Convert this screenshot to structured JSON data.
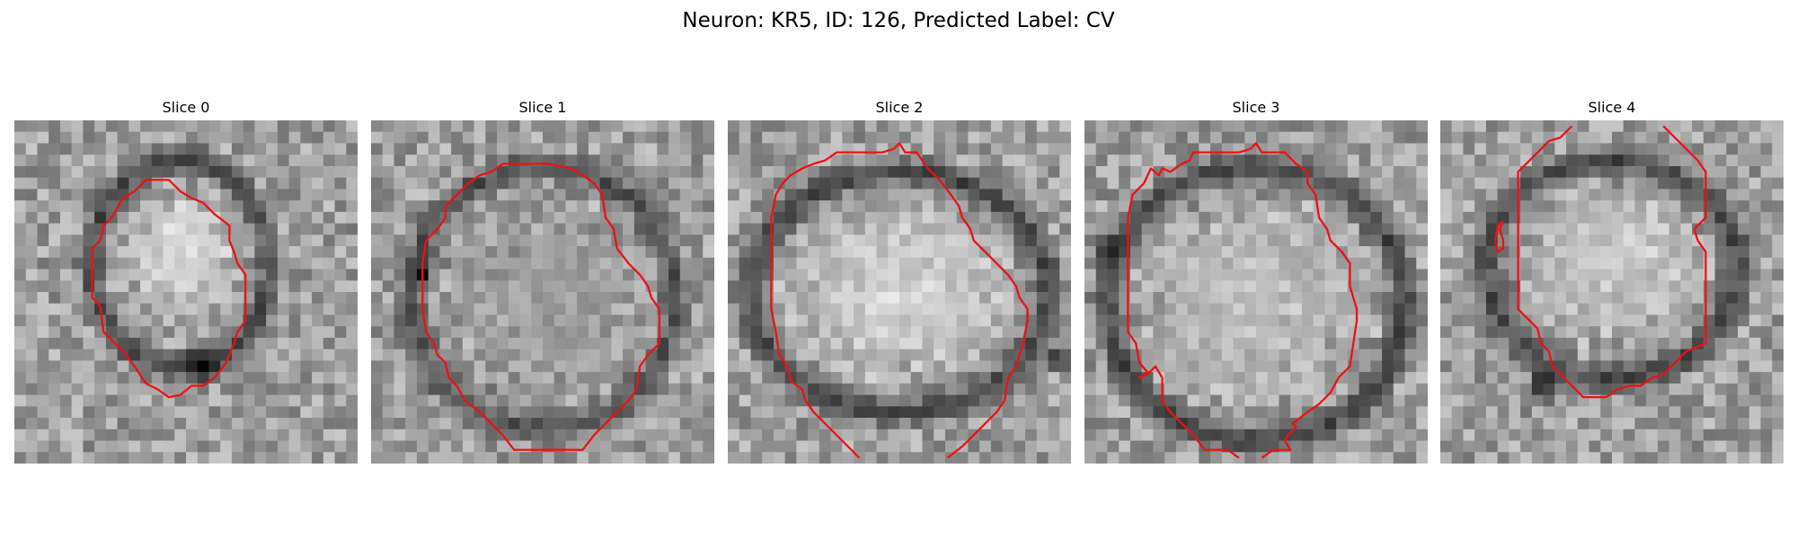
{
  "figure": {
    "title": "Neuron: KR5, ID: 126, Predicted Label: CV"
  },
  "contour_color": "#ee1111",
  "panels": [
    {
      "title": "Slice 0",
      "seed": 11,
      "blob": {
        "cx": 14.5,
        "cy": 11.5,
        "rx": 5.5,
        "ry": 5.2,
        "bright": 0.95
      },
      "ring": {
        "cx": 14.5,
        "cy": 12.5,
        "rx": 7.8,
        "ry": 9.0,
        "w": 1.6,
        "dark": 0.22
      },
      "spot": {
        "cx": 16.5,
        "cy": 21.5,
        "r": 2.2,
        "dark": 0.05
      }
    },
    {
      "seed": 23,
      "title": "Slice 1",
      "blob": {
        "cx": 15.5,
        "cy": 15.5,
        "rx": 9.5,
        "ry": 9.5,
        "bright": 0.62
      },
      "ring": {
        "cx": 15.0,
        "cy": 15.5,
        "rx": 11.5,
        "ry": 11.5,
        "w": 1.8,
        "dark": 0.28
      },
      "spot": {
        "cx": 4.5,
        "cy": 13.5,
        "r": 1.4,
        "dark": 0.1
      }
    },
    {
      "seed": 37,
      "title": "Slice 2",
      "blob": {
        "cx": 15.0,
        "cy": 15.0,
        "rx": 11.5,
        "ry": 8.5,
        "bright": 0.9
      },
      "ring": {
        "cx": 15.0,
        "cy": 15.0,
        "rx": 13.0,
        "ry": 10.5,
        "w": 1.7,
        "dark": 0.2
      },
      "spot": {
        "cx": 29.0,
        "cy": 21.0,
        "r": 1.5,
        "dark": 0.05
      }
    },
    {
      "seed": 49,
      "title": "Slice 3",
      "blob": {
        "cx": 15.0,
        "cy": 16.0,
        "rx": 11.0,
        "ry": 10.0,
        "bright": 0.78
      },
      "ring": {
        "cx": 15.0,
        "cy": 16.0,
        "rx": 13.0,
        "ry": 12.0,
        "w": 1.8,
        "dark": 0.18
      },
      "spot": {
        "cx": 2.0,
        "cy": 11.0,
        "r": 1.6,
        "dark": 0.05
      }
    },
    {
      "seed": 61,
      "title": "Slice 4",
      "blob": {
        "cx": 15.0,
        "cy": 12.5,
        "rx": 9.0,
        "ry": 7.5,
        "bright": 0.85
      },
      "ring": {
        "cx": 15.0,
        "cy": 13.0,
        "rx": 11.0,
        "ry": 9.5,
        "w": 1.7,
        "dark": 0.22
      },
      "spot": {
        "cx": 9.0,
        "cy": 23.0,
        "r": 1.8,
        "dark": 0.05
      }
    }
  ],
  "contours": [
    [
      [
        [
          8.5,
          8.5
        ],
        [
          7.8,
          9.2
        ],
        [
          7.5,
          10.5
        ],
        [
          6.8,
          11.2
        ],
        [
          6.8,
          13.5
        ],
        [
          6.8,
          15.5
        ],
        [
          7.5,
          16.2
        ],
        [
          7.8,
          18.5
        ],
        [
          8.5,
          19.2
        ],
        [
          9.5,
          20.2
        ],
        [
          10.5,
          21.5
        ],
        [
          11.5,
          23.0
        ],
        [
          12.5,
          23.5
        ],
        [
          13.5,
          24.2
        ],
        [
          14.5,
          24.0
        ],
        [
          15.5,
          23.2
        ],
        [
          16.5,
          23.2
        ],
        [
          17.5,
          22.5
        ],
        [
          18.5,
          21.2
        ],
        [
          19.2,
          19.5
        ],
        [
          19.5,
          18.5
        ],
        [
          20.2,
          17.5
        ],
        [
          20.2,
          15.5
        ],
        [
          20.2,
          13.5
        ],
        [
          19.5,
          12.5
        ],
        [
          19.2,
          11.5
        ],
        [
          18.8,
          10.5
        ],
        [
          18.8,
          9.2
        ],
        [
          17.5,
          8.2
        ],
        [
          16.5,
          7.2
        ],
        [
          15.5,
          6.8
        ],
        [
          14.5,
          6.2
        ],
        [
          13.5,
          5.2
        ],
        [
          12.5,
          5.2
        ],
        [
          11.5,
          5.2
        ],
        [
          10.5,
          6.2
        ],
        [
          9.5,
          6.8
        ],
        [
          8.5,
          8.5
        ]
      ]
    ],
    [
      [
        [
          6.5,
          8.5
        ],
        [
          5.8,
          9.5
        ],
        [
          4.8,
          10.5
        ],
        [
          4.5,
          12.5
        ],
        [
          4.5,
          14.5
        ],
        [
          4.5,
          16.5
        ],
        [
          4.8,
          18.5
        ],
        [
          5.5,
          19.5
        ],
        [
          5.8,
          20.5
        ],
        [
          6.5,
          21.2
        ],
        [
          6.8,
          22.5
        ],
        [
          7.5,
          23.2
        ],
        [
          8.2,
          24.5
        ],
        [
          9.5,
          25.5
        ],
        [
          10.5,
          26.5
        ],
        [
          11.5,
          27.5
        ],
        [
          12.5,
          28.8
        ],
        [
          14.5,
          28.8
        ],
        [
          16.5,
          28.8
        ],
        [
          18.5,
          28.8
        ],
        [
          19.5,
          27.5
        ],
        [
          20.5,
          26.5
        ],
        [
          21.5,
          25.5
        ],
        [
          22.5,
          24.5
        ],
        [
          23.2,
          23.5
        ],
        [
          23.5,
          21.5
        ],
        [
          24.2,
          20.5
        ],
        [
          25.2,
          19.5
        ],
        [
          25.2,
          17.5
        ],
        [
          25.2,
          16.5
        ],
        [
          24.5,
          15.5
        ],
        [
          24.2,
          14.5
        ],
        [
          23.5,
          13.5
        ],
        [
          22.5,
          12.5
        ],
        [
          21.5,
          11.2
        ],
        [
          21.2,
          9.5
        ],
        [
          20.5,
          8.5
        ],
        [
          20.2,
          6.5
        ],
        [
          19.5,
          5.5
        ],
        [
          18.5,
          4.8
        ],
        [
          17.5,
          4.2
        ],
        [
          15.5,
          3.8
        ],
        [
          13.5,
          3.8
        ],
        [
          11.5,
          3.8
        ],
        [
          10.5,
          4.5
        ],
        [
          9.5,
          4.8
        ],
        [
          8.5,
          5.5
        ],
        [
          7.5,
          6.5
        ],
        [
          6.5,
          7.5
        ],
        [
          6.5,
          8.5
        ]
      ]
    ],
    [
      [
        [
          4.8,
          5.5
        ],
        [
          4.2,
          6.5
        ],
        [
          3.8,
          8.5
        ],
        [
          3.8,
          10.5
        ],
        [
          3.8,
          12.5
        ],
        [
          3.8,
          14.5
        ],
        [
          3.8,
          16.5
        ],
        [
          4.2,
          18.5
        ],
        [
          4.5,
          20.5
        ],
        [
          5.2,
          21.5
        ],
        [
          5.5,
          22.8
        ],
        [
          6.5,
          23.5
        ],
        [
          6.8,
          24.5
        ],
        [
          7.5,
          25.5
        ],
        [
          8.5,
          26.5
        ],
        [
          9.5,
          27.5
        ],
        [
          10.5,
          28.5
        ],
        [
          11.5,
          29.5
        ]
      ],
      [
        [
          19.2,
          29.5
        ],
        [
          20.5,
          28.5
        ],
        [
          21.5,
          27.5
        ],
        [
          22.5,
          26.5
        ],
        [
          23.5,
          25.5
        ],
        [
          24.2,
          24.5
        ],
        [
          24.5,
          22.5
        ],
        [
          25.2,
          21.5
        ],
        [
          25.8,
          19.5
        ],
        [
          26.2,
          17.5
        ],
        [
          26.2,
          16.5
        ],
        [
          25.5,
          15.5
        ],
        [
          25.2,
          14.5
        ],
        [
          24.5,
          13.5
        ],
        [
          23.5,
          12.5
        ],
        [
          22.5,
          11.5
        ],
        [
          21.5,
          10.5
        ],
        [
          21.2,
          9.5
        ],
        [
          20.5,
          8.5
        ],
        [
          20.2,
          7.5
        ],
        [
          19.5,
          6.5
        ],
        [
          18.5,
          5.2
        ],
        [
          17.5,
          4.2
        ],
        [
          16.5,
          2.8
        ],
        [
          15.5,
          2.8
        ],
        [
          15.0,
          2.0
        ],
        [
          14.5,
          2.5
        ],
        [
          13.5,
          2.8
        ],
        [
          11.5,
          2.8
        ],
        [
          9.5,
          2.8
        ],
        [
          8.5,
          3.5
        ],
        [
          7.5,
          3.8
        ],
        [
          6.5,
          4.2
        ],
        [
          5.5,
          4.8
        ],
        [
          4.8,
          5.5
        ]
      ]
    ],
    [
      [
        [
          5.2,
          5.5
        ],
        [
          4.2,
          6.5
        ],
        [
          3.8,
          8.5
        ],
        [
          3.8,
          10.5
        ],
        [
          3.8,
          12.5
        ],
        [
          3.8,
          14.5
        ],
        [
          3.8,
          16.5
        ],
        [
          3.8,
          18.5
        ],
        [
          4.5,
          19.5
        ],
        [
          4.8,
          21.2
        ],
        [
          5.5,
          22.0
        ],
        [
          4.8,
          22.5
        ],
        [
          5.5,
          22.2
        ],
        [
          6.2,
          21.5
        ],
        [
          6.8,
          22.5
        ],
        [
          6.8,
          24.5
        ],
        [
          7.5,
          25.5
        ],
        [
          8.5,
          26.5
        ],
        [
          9.5,
          27.5
        ],
        [
          10.5,
          28.8
        ],
        [
          12.5,
          28.8
        ],
        [
          13.5,
          29.5
        ]
      ],
      [
        [
          15.5,
          29.5
        ],
        [
          16.5,
          28.8
        ],
        [
          18.0,
          28.8
        ],
        [
          17.5,
          28.0
        ],
        [
          17.8,
          27.5
        ],
        [
          18.5,
          26.8
        ],
        [
          18.2,
          26.5
        ],
        [
          19.5,
          25.5
        ],
        [
          20.5,
          24.8
        ],
        [
          21.5,
          23.8
        ],
        [
          22.2,
          22.5
        ],
        [
          23.2,
          21.5
        ],
        [
          23.5,
          19.5
        ],
        [
          23.8,
          17.5
        ],
        [
          23.8,
          16.5
        ],
        [
          23.5,
          15.5
        ],
        [
          23.2,
          14.5
        ],
        [
          23.2,
          12.5
        ],
        [
          22.5,
          11.5
        ],
        [
          21.5,
          10.5
        ],
        [
          21.2,
          9.5
        ],
        [
          20.5,
          8.5
        ],
        [
          20.2,
          6.5
        ],
        [
          19.5,
          5.5
        ],
        [
          19.5,
          4.5
        ],
        [
          18.5,
          3.8
        ],
        [
          17.5,
          2.8
        ],
        [
          16.5,
          2.8
        ],
        [
          15.5,
          2.8
        ],
        [
          15.0,
          2.0
        ],
        [
          14.5,
          2.5
        ],
        [
          13.5,
          2.8
        ],
        [
          11.5,
          2.8
        ],
        [
          9.5,
          2.8
        ],
        [
          9.2,
          3.5
        ],
        [
          8.5,
          3.8
        ],
        [
          7.5,
          4.5
        ],
        [
          6.8,
          4.2
        ],
        [
          6.5,
          4.8
        ],
        [
          5.8,
          4.2
        ],
        [
          5.2,
          5.5
        ]
      ]
    ],
    [
      [
        [
          11.5,
          0.5
        ],
        [
          10.5,
          1.5
        ],
        [
          9.5,
          1.8
        ],
        [
          8.5,
          2.8
        ],
        [
          7.5,
          3.8
        ],
        [
          6.8,
          4.5
        ],
        [
          6.8,
          6.5
        ],
        [
          6.8,
          8.5
        ],
        [
          6.8,
          10.5
        ],
        [
          6.8,
          12.5
        ],
        [
          6.8,
          14.5
        ],
        [
          6.8,
          16.5
        ],
        [
          7.5,
          17.2
        ],
        [
          8.5,
          18.2
        ],
        [
          8.8,
          19.5
        ],
        [
          9.5,
          20.2
        ],
        [
          9.8,
          21.5
        ],
        [
          10.5,
          22.2
        ],
        [
          11.5,
          23.2
        ],
        [
          12.5,
          24.2
        ],
        [
          13.5,
          24.2
        ],
        [
          14.5,
          24.2
        ],
        [
          15.5,
          23.5
        ],
        [
          16.5,
          23.2
        ],
        [
          17.5,
          23.2
        ],
        [
          18.5,
          22.5
        ],
        [
          19.5,
          22.2
        ],
        [
          20.5,
          21.2
        ],
        [
          21.5,
          20.2
        ],
        [
          23.2,
          19.5
        ],
        [
          23.2,
          17.5
        ],
        [
          23.2,
          15.5
        ],
        [
          23.2,
          13.5
        ],
        [
          23.2,
          11.5
        ],
        [
          22.5,
          10.5
        ],
        [
          22.2,
          9.5
        ],
        [
          23.2,
          8.5
        ],
        [
          23.2,
          6.5
        ],
        [
          23.2,
          4.5
        ],
        [
          22.5,
          3.5
        ],
        [
          21.5,
          2.5
        ],
        [
          20.5,
          1.5
        ],
        [
          19.5,
          0.5
        ]
      ],
      [
        [
          5.5,
          8.8
        ],
        [
          5.0,
          9.2
        ],
        [
          4.8,
          10.5
        ],
        [
          5.0,
          11.5
        ],
        [
          5.5,
          11.2
        ],
        [
          5.5,
          10.5
        ],
        [
          5.2,
          9.5
        ],
        [
          5.5,
          8.8
        ]
      ]
    ]
  ]
}
